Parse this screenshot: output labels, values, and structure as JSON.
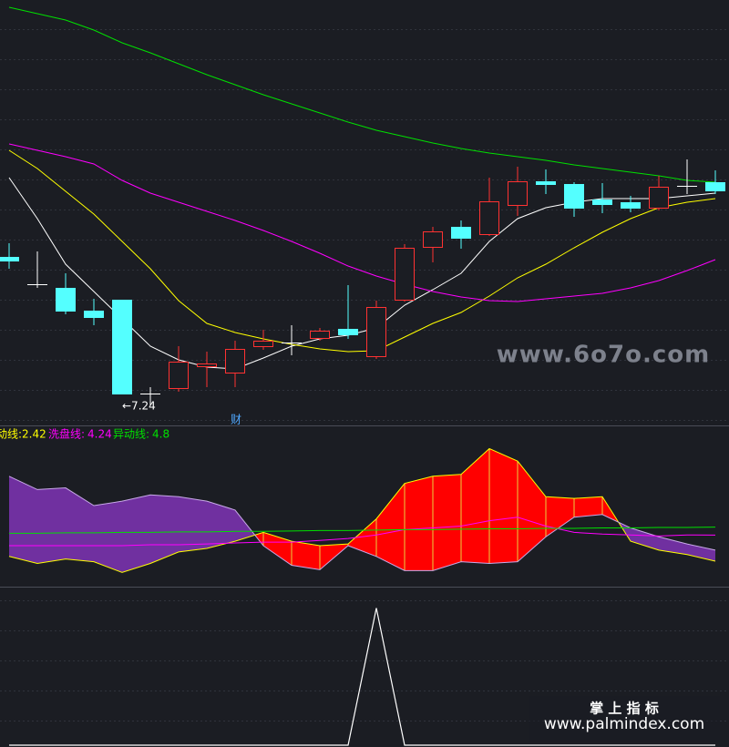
{
  "chart_data": [
    {
      "type": "candlestick",
      "ylim": [
        6.92,
        11.57
      ],
      "up_color": "#ff3232",
      "down_color": "#54ffff",
      "flat_color": "#ffffff",
      "open": [
        8.75,
        8.45,
        8.41,
        8.16,
        8.28,
        7.25,
        7.3,
        7.54,
        7.47,
        7.76,
        7.81,
        7.85,
        7.96,
        7.65,
        8.27,
        8.85,
        9.08,
        8.99,
        9.31,
        9.58,
        9.55,
        9.38,
        9.35,
        9.28,
        9.53,
        9.57
      ],
      "close": [
        8.7,
        8.45,
        8.15,
        8.08,
        7.24,
        7.25,
        7.6,
        7.58,
        7.74,
        7.83,
        7.81,
        7.94,
        7.89,
        8.2,
        8.85,
        9.03,
        8.95,
        9.36,
        9.58,
        9.54,
        9.28,
        9.32,
        9.28,
        9.52,
        9.53,
        9.47
      ],
      "high": [
        8.9,
        8.81,
        8.57,
        8.29,
        8.28,
        7.32,
        7.77,
        7.71,
        7.83,
        7.95,
        8.0,
        7.97,
        8.44,
        8.27,
        8.89,
        9.08,
        9.15,
        9.62,
        9.74,
        9.71,
        9.57,
        9.56,
        9.42,
        9.64,
        9.82,
        9.7
      ],
      "low": [
        8.62,
        8.41,
        8.12,
        8.0,
        7.24,
        7.12,
        7.27,
        7.32,
        7.32,
        7.73,
        7.67,
        7.83,
        7.85,
        7.63,
        8.26,
        8.69,
        8.84,
        8.98,
        9.2,
        9.44,
        9.19,
        9.23,
        9.24,
        9.26,
        9.44,
        9.44
      ],
      "series": [
        {
          "color": "#ffffff",
          "values": [
            9.62,
            9.17,
            8.67,
            8.37,
            8.07,
            7.77,
            7.62,
            7.54,
            7.52,
            7.64,
            7.77,
            7.85,
            7.89,
            7.97,
            8.22,
            8.39,
            8.57,
            8.92,
            9.17,
            9.29,
            9.35,
            9.39,
            9.39,
            9.39,
            9.42,
            9.45
          ]
        },
        {
          "color": "#ffff00",
          "values": [
            9.92,
            9.72,
            9.47,
            9.22,
            8.92,
            8.62,
            8.27,
            8.02,
            7.92,
            7.85,
            7.79,
            7.74,
            7.71,
            7.72,
            7.87,
            8.02,
            8.14,
            8.32,
            8.52,
            8.67,
            8.85,
            9.02,
            9.17,
            9.29,
            9.35,
            9.39
          ]
        },
        {
          "color": "#ff00ff",
          "values": [
            9.99,
            9.92,
            9.85,
            9.77,
            9.59,
            9.45,
            9.35,
            9.25,
            9.15,
            9.04,
            8.92,
            8.79,
            8.65,
            8.54,
            8.45,
            8.37,
            8.31,
            8.27,
            8.26,
            8.29,
            8.32,
            8.35,
            8.41,
            8.49,
            8.6,
            8.72
          ]
        },
        {
          "color": "#00e000",
          "values": [
            11.49,
            11.42,
            11.35,
            11.24,
            11.1,
            10.99,
            10.87,
            10.75,
            10.64,
            10.53,
            10.43,
            10.33,
            10.23,
            10.14,
            10.07,
            10.0,
            9.94,
            9.89,
            9.85,
            9.81,
            9.76,
            9.72,
            9.68,
            9.64,
            9.59,
            9.57
          ]
        }
      ],
      "low_label": "←7.24",
      "annotation": "财",
      "watermark": "www.6o7o.com"
    },
    {
      "type": "band",
      "ylim": [
        0.7,
        11.71
      ],
      "up_fill": "#ff0000",
      "down_fill": "#7030a0",
      "divider_color": "#e8d040",
      "series": [
        {
          "name": "动线:",
          "color": "#ffff00",
          "values": [
            2.75,
            2.26,
            2.57,
            2.38,
            1.63,
            2.26,
            3.06,
            3.31,
            3.81,
            4.43,
            3.81,
            3.5,
            3.62,
            5.37,
            7.85,
            8.35,
            8.48,
            10.28,
            9.41,
            6.92,
            6.8,
            6.92,
            3.81,
            3.19,
            2.88,
            2.42
          ]
        },
        {
          "color": "#c8a8e8",
          "values": [
            8.35,
            7.42,
            7.54,
            6.3,
            6.61,
            7.05,
            6.92,
            6.61,
            5.99,
            3.5,
            2.13,
            1.82,
            3.5,
            2.75,
            1.76,
            1.76,
            2.38,
            2.26,
            2.38,
            4.12,
            5.49,
            5.68,
            4.74,
            4.12,
            3.62,
            3.19
          ]
        },
        {
          "name": "洗盘线:",
          "color": "#ff00ff",
          "values": [
            3.5,
            3.5,
            3.5,
            3.5,
            3.5,
            3.56,
            3.56,
            3.62,
            3.69,
            3.75,
            3.75,
            3.87,
            4.0,
            4.25,
            4.62,
            4.74,
            4.87,
            5.24,
            5.49,
            4.87,
            4.43,
            4.31,
            4.25,
            4.18,
            4.25,
            4.24
          ]
        },
        {
          "name": "异动线:",
          "color": "#00e000",
          "values": [
            4.37,
            4.37,
            4.4,
            4.4,
            4.43,
            4.43,
            4.46,
            4.46,
            4.5,
            4.5,
            4.53,
            4.56,
            4.56,
            4.59,
            4.62,
            4.62,
            4.65,
            4.68,
            4.68,
            4.71,
            4.71,
            4.74,
            4.74,
            4.77,
            4.77,
            4.8
          ]
        }
      ]
    },
    {
      "type": "line",
      "ylim": [
        0,
        1.13
      ],
      "series": [
        {
          "color": "#ffffff",
          "values": [
            0,
            0,
            0,
            0,
            0,
            0,
            0,
            0,
            0,
            0,
            0,
            0,
            0,
            1,
            0,
            0,
            0,
            0,
            0,
            0,
            0,
            0,
            0,
            0,
            0,
            0
          ]
        }
      ]
    }
  ],
  "footer": {
    "title": "掌 上 指 标",
    "url": "www.palmindex.com"
  }
}
